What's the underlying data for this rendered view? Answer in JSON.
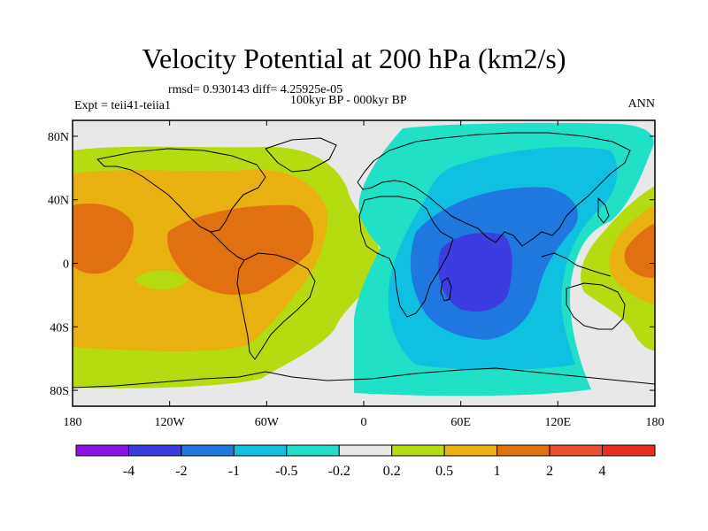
{
  "header": {
    "title": "Velocity Potential at 200 hPa (km2/s)",
    "stats": "rmsd= 0.930143 diff= 4.25925e-05",
    "experiment": "Expt = teii41-teiia1",
    "period": "100kyr BP - 000kyr BP",
    "season": "ANN"
  },
  "axes": {
    "x_ticks": [
      "180",
      "120W",
      "60W",
      "0",
      "60E",
      "120E",
      "180"
    ],
    "y_ticks": [
      "80N",
      "40N",
      "0",
      "40S",
      "80S"
    ]
  },
  "colorbar": {
    "labels": [
      "-4",
      "-2",
      "-1",
      "-0.5",
      "-0.2",
      "0.2",
      "0.5",
      "1",
      "2",
      "4"
    ],
    "colors": [
      "#8c16e8",
      "#3c3ce0",
      "#1e78e0",
      "#10c0e0",
      "#20e0c8",
      "#e8e8e8",
      "#b4dc10",
      "#e8b010",
      "#e07010",
      "#e85030",
      "#e83020"
    ]
  },
  "colors": {
    "neutral": "#e8e8e8",
    "pos_light": "#b4dc10",
    "pos_mid": "#e8b010",
    "pos_strong": "#e07010",
    "neg_light": "#20e0c8",
    "neg_mid": "#10c0e0",
    "neg_strong": "#1e78e0",
    "neg_core": "#3c3ce0"
  }
}
